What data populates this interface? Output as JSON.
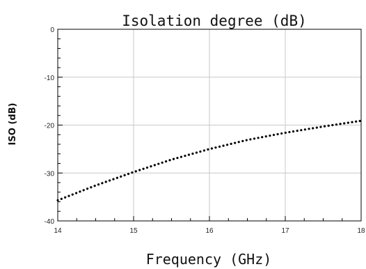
{
  "chart_data": {
    "type": "line",
    "title": "Isolation degree (dB)",
    "xlabel": "Frequency (GHz)",
    "ylabel": "ISO (dB)",
    "xlim": [
      14,
      18
    ],
    "ylim": [
      -40,
      0
    ],
    "x_ticks": [
      "14",
      "15",
      "16",
      "17",
      "18"
    ],
    "y_ticks": [
      "0",
      "-10",
      "-20",
      "-30",
      "-40"
    ],
    "grid": true,
    "line_style": "dotted",
    "line_color": "#000000",
    "grid_color": "#c8c8c8",
    "series": [
      {
        "x": [
          14,
          14.5,
          15,
          15.5,
          16,
          16.5,
          17,
          17.5,
          18
        ],
        "y": [
          -35.7,
          -32.6,
          -29.8,
          -27.2,
          -25.0,
          -23.1,
          -21.6,
          -20.3,
          -19.1
        ]
      }
    ]
  }
}
